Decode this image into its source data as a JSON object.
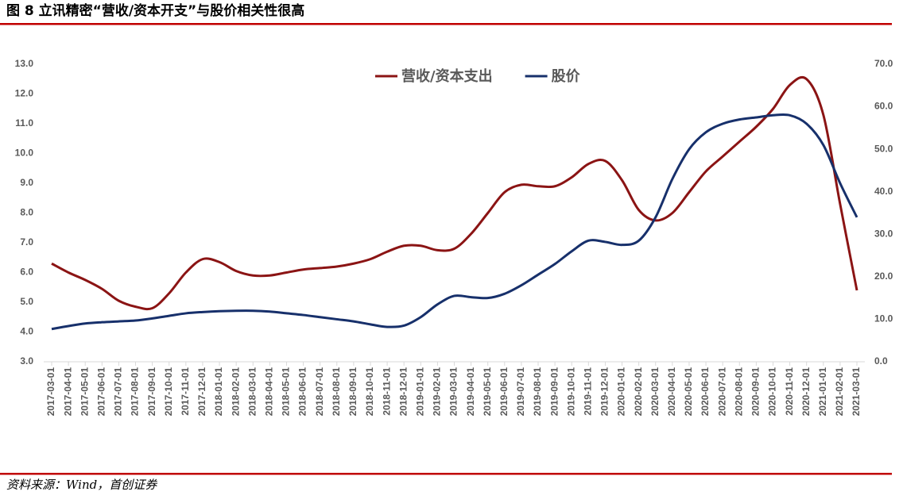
{
  "chart_data": {
    "type": "line",
    "title": "图 8 立讯精密“营收/资本开支”与股价相关性很高",
    "source": "资料来源：Wind，首创证券",
    "categories": [
      "2017-03-01",
      "2017-04-01",
      "2017-05-01",
      "2017-06-01",
      "2017-07-01",
      "2017-08-01",
      "2017-09-01",
      "2017-10-01",
      "2017-11-01",
      "2017-12-01",
      "2018-01-01",
      "2018-02-01",
      "2018-03-01",
      "2018-04-01",
      "2018-05-01",
      "2018-06-01",
      "2018-07-01",
      "2018-08-01",
      "2018-09-01",
      "2018-10-01",
      "2018-11-01",
      "2018-12-01",
      "2019-01-01",
      "2019-02-01",
      "2019-03-01",
      "2019-04-01",
      "2019-05-01",
      "2019-06-01",
      "2019-07-01",
      "2019-08-01",
      "2019-09-01",
      "2019-10-01",
      "2019-11-01",
      "2019-12-01",
      "2020-01-01",
      "2020-02-01",
      "2020-03-01",
      "2020-04-01",
      "2020-05-01",
      "2020-06-01",
      "2020-07-01",
      "2020-08-01",
      "2020-09-01",
      "2020-10-01",
      "2020-11-01",
      "2020-12-01",
      "2021-01-01",
      "2021-02-01",
      "2021-03-01"
    ],
    "series": [
      {
        "name": "营收/资本支出",
        "color": "#8b1414",
        "axis": "y",
        "values": [
          6.3,
          6.0,
          5.75,
          5.45,
          5.05,
          4.85,
          4.8,
          5.3,
          6.0,
          6.45,
          6.35,
          6.05,
          5.9,
          5.9,
          6.0,
          6.1,
          6.15,
          6.2,
          6.3,
          6.45,
          6.7,
          6.9,
          6.9,
          6.75,
          6.8,
          7.3,
          8.0,
          8.7,
          8.95,
          8.9,
          8.9,
          9.2,
          9.65,
          9.75,
          9.1,
          8.1,
          7.75,
          8.0,
          8.7,
          9.4,
          9.9,
          10.4,
          10.9,
          11.5,
          12.3,
          12.5,
          11.3,
          8.3,
          5.4
        ]
      },
      {
        "name": "股价",
        "color": "#17306b",
        "axis": "y2",
        "values": [
          7.7,
          8.4,
          9.0,
          9.3,
          9.5,
          9.7,
          10.2,
          10.8,
          11.4,
          11.7,
          11.9,
          12.0,
          12.0,
          11.8,
          11.4,
          11.0,
          10.5,
          10.0,
          9.5,
          8.8,
          8.2,
          8.5,
          10.5,
          13.5,
          15.5,
          15.2,
          15.0,
          16.0,
          18.0,
          20.5,
          23.0,
          26.0,
          28.5,
          28.2,
          27.5,
          28.5,
          34.0,
          43.0,
          50.0,
          54.0,
          56.0,
          57.0,
          57.5,
          58.0,
          58.0,
          56.0,
          51.0,
          42.0,
          34.0
        ]
      }
    ],
    "ylim": [
      3,
      13
    ],
    "yticks": [
      {
        "value": 3,
        "label": "3.0"
      },
      {
        "value": 4,
        "label": "4.0"
      },
      {
        "value": 5,
        "label": "5.0"
      },
      {
        "value": 6,
        "label": "6.0"
      },
      {
        "value": 7,
        "label": "7.0"
      },
      {
        "value": 8,
        "label": "8.0"
      },
      {
        "value": 9,
        "label": "9.0"
      },
      {
        "value": 10,
        "label": "10.0"
      },
      {
        "value": 11,
        "label": "11.0"
      },
      {
        "value": 12,
        "label": "12.0"
      },
      {
        "value": 13,
        "label": "13.0"
      }
    ],
    "y2lim": [
      0,
      70
    ],
    "y2ticks": [
      {
        "value": 0,
        "label": "0.0"
      },
      {
        "value": 10,
        "label": "10.0"
      },
      {
        "value": 20,
        "label": "20.0"
      },
      {
        "value": 30,
        "label": "30.0"
      },
      {
        "value": 40,
        "label": "40.0"
      },
      {
        "value": 50,
        "label": "50.0"
      },
      {
        "value": 60,
        "label": "60.0"
      },
      {
        "value": 70,
        "label": "70.0"
      }
    ],
    "legend": "top"
  }
}
